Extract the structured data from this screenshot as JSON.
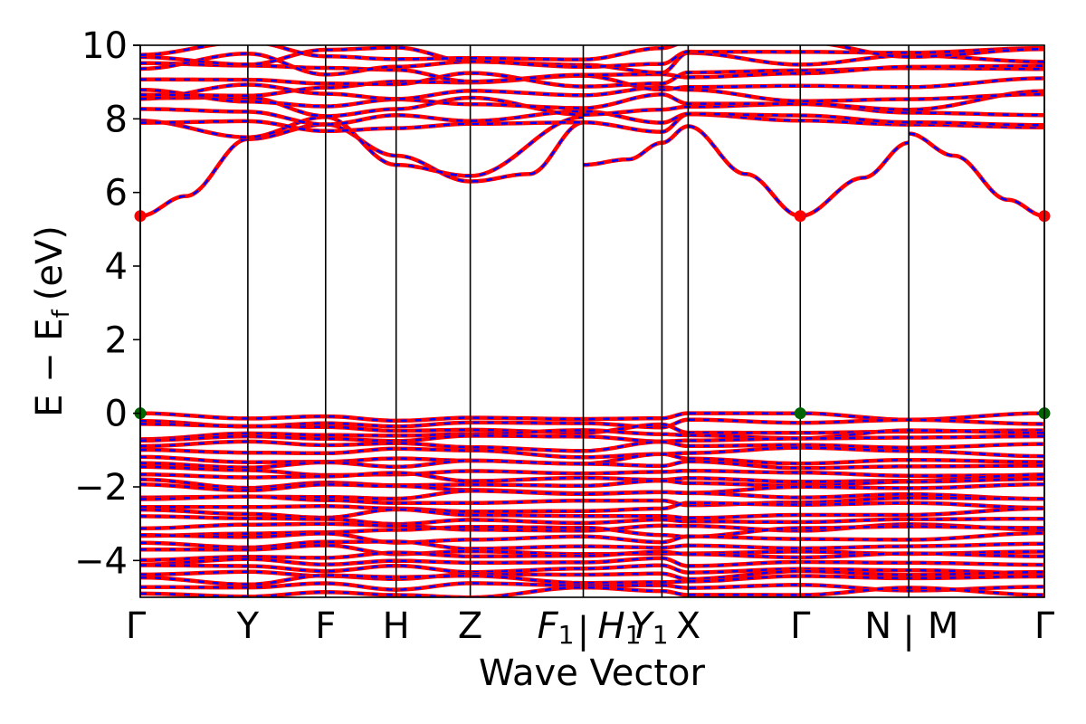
{
  "chart_data": {
    "type": "line",
    "title": "",
    "xlabel": "Wave Vector",
    "ylabel": "E − E",
    "ylabel_sub": "f",
    "ylabel_unit": "(eV)",
    "ylim": [
      -5,
      10
    ],
    "yticks": [
      -4,
      -2,
      0,
      2,
      4,
      6,
      8,
      10
    ],
    "ytick_labels": [
      "−4",
      "−2",
      "0",
      "2",
      "4",
      "6",
      "8",
      "10"
    ],
    "grid": false,
    "colors": {
      "spin_up": "#ff0000",
      "spin_down": "#0000ff",
      "vbm_marker": "#006400",
      "cbm_marker": "#ff0000",
      "kpath_lines": "#000000"
    },
    "kpath": [
      {
        "x": 0.0,
        "label": "Γ",
        "sub": ""
      },
      {
        "x": 0.119,
        "label": "Y",
        "sub": ""
      },
      {
        "x": 0.205,
        "label": "F",
        "sub": ""
      },
      {
        "x": 0.283,
        "label": "H",
        "sub": ""
      },
      {
        "x": 0.365,
        "label": "Z",
        "sub": ""
      },
      {
        "x": 0.49,
        "label": "F",
        "sub": "1"
      },
      {
        "x": 0.49,
        "label": "|",
        "sub": ""
      },
      {
        "x": 0.49,
        "label": "H",
        "sub": "1"
      },
      {
        "x": 0.577,
        "label": "Y",
        "sub": "1"
      },
      {
        "x": 0.606,
        "label": "X",
        "sub": ""
      },
      {
        "x": 0.73,
        "label": "Γ",
        "sub": ""
      },
      {
        "x": 0.85,
        "label": "N",
        "sub": ""
      },
      {
        "x": 0.85,
        "label": "|",
        "sub": ""
      },
      {
        "x": 0.85,
        "label": "M",
        "sub": ""
      },
      {
        "x": 1.0,
        "label": "Γ",
        "sub": ""
      }
    ],
    "band_edges": {
      "vbm": {
        "energy": 0.0,
        "k_labels": [
          "Γ",
          "Γ",
          "Γ"
        ]
      },
      "cbm": {
        "energy": 5.36,
        "k_labels": [
          "Γ",
          "Γ",
          "Γ"
        ]
      }
    },
    "conduction_bands": [
      {
        "segment": "Γ-Y-F-H-Z-F1",
        "x": [
          0.0,
          0.05,
          0.119,
          0.205,
          0.283,
          0.365,
          0.43,
          0.49
        ],
        "y": [
          5.36,
          5.9,
          7.45,
          7.85,
          7.0,
          6.3,
          6.5,
          7.9
        ]
      },
      {
        "segment": "Γ-Y-F-H-Z-F1",
        "x": [
          0.0,
          0.119,
          0.205,
          0.283,
          0.365,
          0.49
        ],
        "y": [
          7.95,
          7.5,
          8.05,
          6.75,
          6.45,
          8.05
        ]
      },
      {
        "segment": "H1-Y1-X-Γ",
        "x": [
          0.49,
          0.54,
          0.577,
          0.606,
          0.67,
          0.73
        ],
        "y": [
          6.75,
          6.9,
          7.35,
          7.8,
          6.5,
          5.36
        ]
      },
      {
        "segment": "Γ-N",
        "x": [
          0.73,
          0.8,
          0.85
        ],
        "y": [
          5.36,
          6.4,
          7.35
        ]
      },
      {
        "segment": "M-Γ",
        "x": [
          0.85,
          0.9,
          0.96,
          1.0
        ],
        "y": [
          7.6,
          7.0,
          5.8,
          5.36
        ]
      }
    ],
    "valence_band_region": {
      "top": 0.0,
      "bottom": -5.0
    }
  }
}
